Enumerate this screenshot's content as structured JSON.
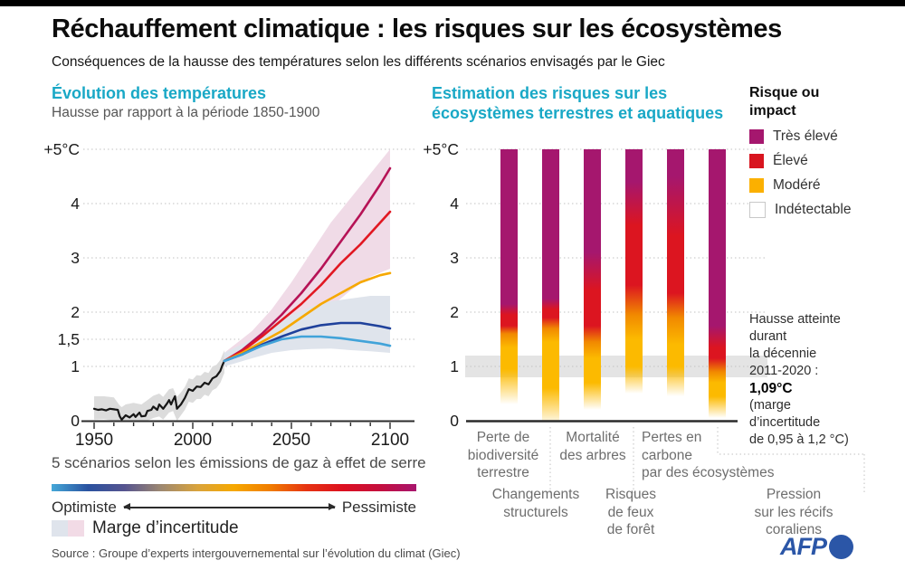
{
  "page": {
    "title": "Réchauffement climatique : les risques sur les écosystèmes",
    "subtitle": "Conséquences de la hausse des températures selon les différents scénarios envisagés par le Giec",
    "source": "Source : Groupe d’experts intergouvernemental sur l’évolution du climat (Giec)",
    "brand": "AFP"
  },
  "colors": {
    "accent_teal": "#19a8c6",
    "afp_blue": "#2b56a7",
    "risk_magenta": "#a5176e",
    "risk_red": "#dc1520",
    "risk_orange": "#f18900",
    "risk_yellow": "#fcba00"
  },
  "chart_data": [
    {
      "id": "evolution-temperatures",
      "type": "line",
      "title": "Évolution des températures",
      "subtitle": "Hausse par rapport à la période 1850-1900",
      "xlim": [
        1950,
        2100
      ],
      "ylim": [
        0,
        5
      ],
      "grid": true,
      "xticks": [
        1950,
        2000,
        2050,
        2100
      ],
      "yticks": [
        {
          "value": 0,
          "label": "0"
        },
        {
          "value": 1,
          "label": "1"
        },
        {
          "value": 1.5,
          "label": "1,5"
        },
        {
          "value": 2,
          "label": "2"
        },
        {
          "value": 3,
          "label": "3"
        },
        {
          "value": 4,
          "label": "4"
        },
        {
          "value": 5,
          "label": "+5°C"
        }
      ],
      "caption": "5 scénarios selon les émissions de gaz à effet de serre",
      "scale": {
        "left_label": "Optimiste",
        "right_label": "Pessimiste",
        "gradient": [
          "#45a8d8",
          "#2a52a0",
          "#56548f",
          "#9d8871",
          "#d9a33c",
          "#f6a800",
          "#f07c00",
          "#e63312",
          "#dc1020",
          "#c40f3e",
          "#a8156e"
        ]
      },
      "uncertainty": {
        "label": "Marge d’incertitude",
        "swatches": [
          "#dfe4ec",
          "#f2dbe6"
        ]
      },
      "historical": {
        "name": "températures observées",
        "color": "#161616",
        "band_color": "#dcdcdc",
        "points": [
          [
            1950,
            0.22
          ],
          [
            1952,
            0.2
          ],
          [
            1954,
            0.21
          ],
          [
            1956,
            0.19
          ],
          [
            1958,
            0.22
          ],
          [
            1960,
            0.21
          ],
          [
            1962,
            0.2
          ],
          [
            1963,
            0.08
          ],
          [
            1964,
            0.02
          ],
          [
            1965,
            0.06
          ],
          [
            1966,
            0.1
          ],
          [
            1968,
            0.06
          ],
          [
            1970,
            0.12
          ],
          [
            1971,
            0.07
          ],
          [
            1973,
            0.15
          ],
          [
            1974,
            0.08
          ],
          [
            1976,
            0.09
          ],
          [
            1977,
            0.18
          ],
          [
            1979,
            0.2
          ],
          [
            1980,
            0.26
          ],
          [
            1982,
            0.2
          ],
          [
            1983,
            0.3
          ],
          [
            1985,
            0.22
          ],
          [
            1987,
            0.32
          ],
          [
            1988,
            0.38
          ],
          [
            1989,
            0.3
          ],
          [
            1990,
            0.38
          ],
          [
            1991,
            0.45
          ],
          [
            1992,
            0.22
          ],
          [
            1994,
            0.3
          ],
          [
            1996,
            0.42
          ],
          [
            1998,
            0.58
          ],
          [
            2000,
            0.55
          ],
          [
            2002,
            0.63
          ],
          [
            2004,
            0.62
          ],
          [
            2006,
            0.7
          ],
          [
            2008,
            0.67
          ],
          [
            2010,
            0.78
          ],
          [
            2012,
            0.82
          ],
          [
            2014,
            0.92
          ],
          [
            2015,
            1.02
          ],
          [
            2016,
            1.1
          ]
        ],
        "band": [
          [
            1950,
            0.02,
            0.45
          ],
          [
            1955,
            0.03,
            0.45
          ],
          [
            1960,
            0,
            0.43
          ],
          [
            1963,
            0,
            0.28
          ],
          [
            1964,
            0,
            0.25
          ],
          [
            1966,
            0,
            0.3
          ],
          [
            1970,
            0,
            0.33
          ],
          [
            1974,
            0,
            0.3
          ],
          [
            1977,
            0,
            0.38
          ],
          [
            1980,
            0.05,
            0.46
          ],
          [
            1983,
            0.08,
            0.5
          ],
          [
            1985,
            0.02,
            0.44
          ],
          [
            1988,
            0.15,
            0.58
          ],
          [
            1990,
            0.18,
            0.6
          ],
          [
            1992,
            0,
            0.44
          ],
          [
            1994,
            0.1,
            0.52
          ],
          [
            1996,
            0.2,
            0.62
          ],
          [
            1998,
            0.35,
            0.78
          ],
          [
            2000,
            0.33,
            0.76
          ],
          [
            2002,
            0.4,
            0.84
          ],
          [
            2004,
            0.4,
            0.83
          ],
          [
            2006,
            0.48,
            0.9
          ],
          [
            2008,
            0.45,
            0.88
          ],
          [
            2010,
            0.56,
            1
          ],
          [
            2012,
            0.6,
            1.03
          ],
          [
            2014,
            0.7,
            1.12
          ],
          [
            2016,
            0.88,
            1.3
          ]
        ]
      },
      "scenarios": [
        {
          "name": "pessimiste",
          "color": "#b61356",
          "value_2100": 4.7,
          "points": [
            [
              2016,
              1.1
            ],
            [
              2025,
              1.3
            ],
            [
              2035,
              1.6
            ],
            [
              2045,
              1.95
            ],
            [
              2055,
              2.35
            ],
            [
              2065,
              2.8
            ],
            [
              2075,
              3.3
            ],
            [
              2085,
              3.8
            ],
            [
              2095,
              4.35
            ],
            [
              2100,
              4.65
            ]
          ]
        },
        {
          "name": "élevé",
          "color": "#e11822",
          "value_2100": 3.9,
          "points": [
            [
              2016,
              1.1
            ],
            [
              2025,
              1.28
            ],
            [
              2035,
              1.55
            ],
            [
              2045,
              1.85
            ],
            [
              2055,
              2.15
            ],
            [
              2065,
              2.5
            ],
            [
              2075,
              2.9
            ],
            [
              2085,
              3.25
            ],
            [
              2095,
              3.65
            ],
            [
              2100,
              3.85
            ]
          ]
        },
        {
          "name": "intermédiaire",
          "color": "#f6a800",
          "value_2100": 2.7,
          "points": [
            [
              2016,
              1.1
            ],
            [
              2025,
              1.25
            ],
            [
              2035,
              1.45
            ],
            [
              2045,
              1.65
            ],
            [
              2055,
              1.9
            ],
            [
              2065,
              2.15
            ],
            [
              2075,
              2.35
            ],
            [
              2085,
              2.55
            ],
            [
              2095,
              2.68
            ],
            [
              2100,
              2.72
            ]
          ]
        },
        {
          "name": "bas",
          "color": "#1f419b",
          "value_2100": 1.7,
          "points": [
            [
              2016,
              1.1
            ],
            [
              2025,
              1.22
            ],
            [
              2035,
              1.4
            ],
            [
              2045,
              1.55
            ],
            [
              2055,
              1.68
            ],
            [
              2065,
              1.76
            ],
            [
              2075,
              1.8
            ],
            [
              2085,
              1.8
            ],
            [
              2095,
              1.74
            ],
            [
              2100,
              1.7
            ]
          ]
        },
        {
          "name": "optimiste",
          "color": "#41a3d9",
          "value_2100": 1.4,
          "points": [
            [
              2016,
              1.1
            ],
            [
              2025,
              1.22
            ],
            [
              2035,
              1.38
            ],
            [
              2045,
              1.5
            ],
            [
              2055,
              1.55
            ],
            [
              2065,
              1.55
            ],
            [
              2075,
              1.52
            ],
            [
              2085,
              1.47
            ],
            [
              2095,
              1.42
            ],
            [
              2100,
              1.38
            ]
          ]
        }
      ],
      "bands": [
        {
          "name": "incertitude scénarios pessimistes",
          "color": "#f0dbe7",
          "points": [
            [
              2016,
              1,
              1.25
            ],
            [
              2030,
              1.2,
              1.65
            ],
            [
              2040,
              1.35,
              2.05
            ],
            [
              2050,
              1.55,
              2.55
            ],
            [
              2060,
              1.8,
              3.1
            ],
            [
              2070,
              2.1,
              3.65
            ],
            [
              2080,
              2.4,
              4.1
            ],
            [
              2090,
              2.65,
              4.55
            ],
            [
              2100,
              2.8,
              5
            ]
          ]
        },
        {
          "name": "incertitude scénarios optimistes",
          "color": "#dfe4ec",
          "points": [
            [
              2016,
              1,
              1.25
            ],
            [
              2030,
              1.15,
              1.5
            ],
            [
              2040,
              1.25,
              1.75
            ],
            [
              2050,
              1.3,
              1.95
            ],
            [
              2060,
              1.32,
              2.1
            ],
            [
              2070,
              1.33,
              2.2
            ],
            [
              2080,
              1.3,
              2.25
            ],
            [
              2090,
              1.28,
              2.3
            ],
            [
              2100,
              1.25,
              2.3
            ]
          ]
        }
      ]
    },
    {
      "id": "risques-ecosystemes",
      "type": "gradient-bar",
      "title": "Estimation des risques sur les écosystèmes terrestres et aquatiques",
      "ylim": [
        0,
        5
      ],
      "grid": true,
      "yticks": [
        {
          "value": 0,
          "label": "0"
        },
        {
          "value": 1,
          "label": "1"
        },
        {
          "value": 2,
          "label": "2"
        },
        {
          "value": 3,
          "label": "3"
        },
        {
          "value": 4,
          "label": "4"
        },
        {
          "value": 5,
          "label": "+5°C"
        }
      ],
      "legend": {
        "title": "Risque ou impact",
        "items": [
          {
            "label": "Très élevé",
            "color": "#a5176e"
          },
          {
            "label": "Élevé",
            "color": "#d8141f"
          },
          {
            "label": "Modéré",
            "color": "#fbb000"
          },
          {
            "label": "Indétectable",
            "color": "#ffffff",
            "border": "#c8c8c8"
          }
        ]
      },
      "risk_colors": {
        "yellow": "#fcba00",
        "orange": "#f18900",
        "red": "#dc1520",
        "magenta": "#a5176e"
      },
      "decade_band": {
        "range": [
          0.95,
          1.2
        ],
        "color": "#e4e4e4"
      },
      "annotation": {
        "lines": [
          "Hausse atteinte",
          "durant",
          "la décennie",
          "2011-2020 :"
        ],
        "value": "1,09°C",
        "note_lines": [
          "(marge",
          "d’incertitude",
          "de 0,95 à 1,2 °C)"
        ]
      },
      "bars": [
        {
          "label": "Perte de biodiversité terrestre",
          "label_lines": [
            "Perte de",
            "biodiversité",
            "terrestre"
          ],
          "stops": [
            [
              0.3,
              "yellow",
              0
            ],
            [
              0.95,
              "yellow",
              1
            ],
            [
              1.35,
              "yellow",
              1
            ],
            [
              1.6,
              "orange",
              1
            ],
            [
              1.75,
              "red",
              1
            ],
            [
              1.95,
              "red",
              1
            ],
            [
              2.15,
              "magenta",
              1
            ],
            [
              5,
              "magenta",
              1
            ]
          ]
        },
        {
          "label": "Changements structurels",
          "label_lines": [
            "Changements",
            "structurels"
          ],
          "stops": [
            [
              0,
              "yellow",
              0.15
            ],
            [
              0.6,
              "yellow",
              1
            ],
            [
              1.45,
              "yellow",
              1
            ],
            [
              1.7,
              "orange",
              1
            ],
            [
              1.9,
              "red",
              1
            ],
            [
              2.05,
              "red",
              1
            ],
            [
              2.25,
              "magenta",
              1
            ],
            [
              5,
              "magenta",
              1
            ]
          ]
        },
        {
          "label": "Mortalité des arbres",
          "label_lines": [
            "Mortalité",
            "des arbres"
          ],
          "stops": [
            [
              0.2,
              "yellow",
              0
            ],
            [
              0.7,
              "yellow",
              1
            ],
            [
              1.15,
              "yellow",
              1
            ],
            [
              1.45,
              "orange",
              1
            ],
            [
              1.75,
              "red",
              1
            ],
            [
              2.4,
              "red",
              1
            ],
            [
              3.1,
              "magenta",
              1
            ],
            [
              5,
              "magenta",
              1
            ]
          ]
        },
        {
          "label": "Risques de feux de forêt",
          "label_lines": [
            "Risques",
            "de feux",
            "de forêt"
          ],
          "stops": [
            [
              0.5,
              "yellow",
              0
            ],
            [
              1,
              "yellow",
              1
            ],
            [
              1.5,
              "yellow",
              1
            ],
            [
              1.95,
              "orange",
              1
            ],
            [
              2.5,
              "red",
              1
            ],
            [
              3.6,
              "red",
              1
            ],
            [
              4.4,
              "magenta",
              1
            ],
            [
              5,
              "magenta",
              1
            ]
          ]
        },
        {
          "label": "Pertes en carbone par des écosystèmes",
          "label_lines": [
            "Pertes en",
            "carbone",
            "par des écosystèmes"
          ],
          "stops": [
            [
              0.45,
              "yellow",
              0
            ],
            [
              1,
              "yellow",
              1
            ],
            [
              1.4,
              "yellow",
              1
            ],
            [
              1.9,
              "orange",
              1
            ],
            [
              2.35,
              "red",
              1
            ],
            [
              3.4,
              "red",
              1
            ],
            [
              4.5,
              "magenta",
              1
            ],
            [
              5,
              "magenta",
              1
            ]
          ]
        },
        {
          "label": "Pression sur les récifs coraliens",
          "label_lines": [
            "Pression",
            "sur les récifs",
            "coraliens"
          ],
          "stops": [
            [
              0.05,
              "yellow",
              0
            ],
            [
              0.45,
              "yellow",
              1
            ],
            [
              0.7,
              "yellow",
              1
            ],
            [
              0.9,
              "orange",
              1
            ],
            [
              1.15,
              "red",
              1
            ],
            [
              1.35,
              "red",
              1
            ],
            [
              1.75,
              "magenta",
              1
            ],
            [
              5,
              "magenta",
              1
            ]
          ]
        }
      ]
    }
  ]
}
